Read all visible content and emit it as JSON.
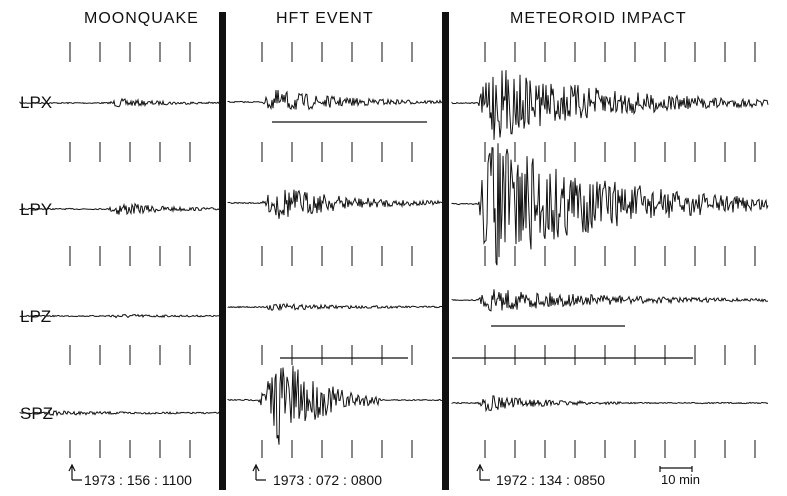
{
  "panels": [
    {
      "id": "moonquake",
      "title": "MOONQUAKE",
      "timestamp": "1973 : 156 : 1100"
    },
    {
      "id": "hft",
      "title": "HFT EVENT",
      "timestamp": "1973 : 072 : 0800"
    },
    {
      "id": "impact",
      "title": "METEOROID  IMPACT",
      "timestamp": "1972 : 134 : 0850"
    }
  ],
  "channels": [
    "LPX",
    "LPY",
    "LPZ",
    "SPZ"
  ],
  "scale_bar": {
    "label": "10 min"
  },
  "colors": {
    "trace": "#111111",
    "divider": "#111111",
    "background": "#ffffff"
  }
}
